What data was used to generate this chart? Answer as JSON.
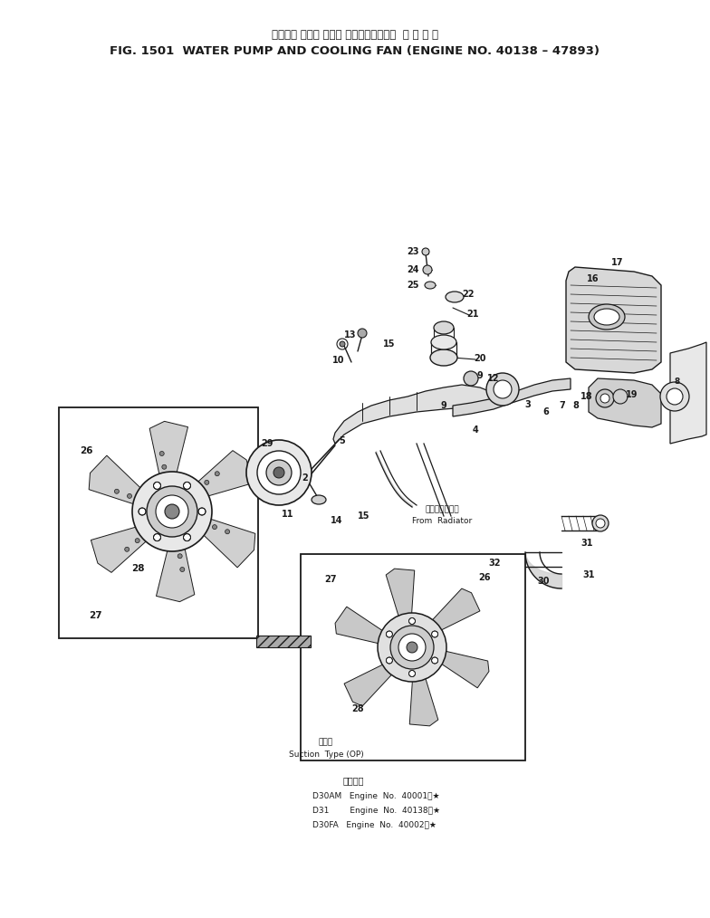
{
  "title_japanese": "ウォータ ポンプ および クーリングファン  適 用 号 機",
  "title_english": "FIG. 1501  WATER PUMP AND COOLING FAN (ENGINE NO. 40138 – 47893)",
  "bg_color": "#ffffff",
  "line_color": "#1a1a1a",
  "fig_width": 7.84,
  "fig_height": 10.14,
  "dpi": 100,
  "subtitle_japanese": "適用号機",
  "engine_lines": [
    "D30AM   Engine  No.  40001～★",
    "D31        Engine  No.  40138～★",
    "D30FA   Engine  No.  40002～★"
  ],
  "suction_label_jp": "標準型",
  "suction_label_en": "Suction  Type (OP)",
  "radiator_label_jp": "ラジエータから",
  "radiator_label_en": "From  Radiator"
}
